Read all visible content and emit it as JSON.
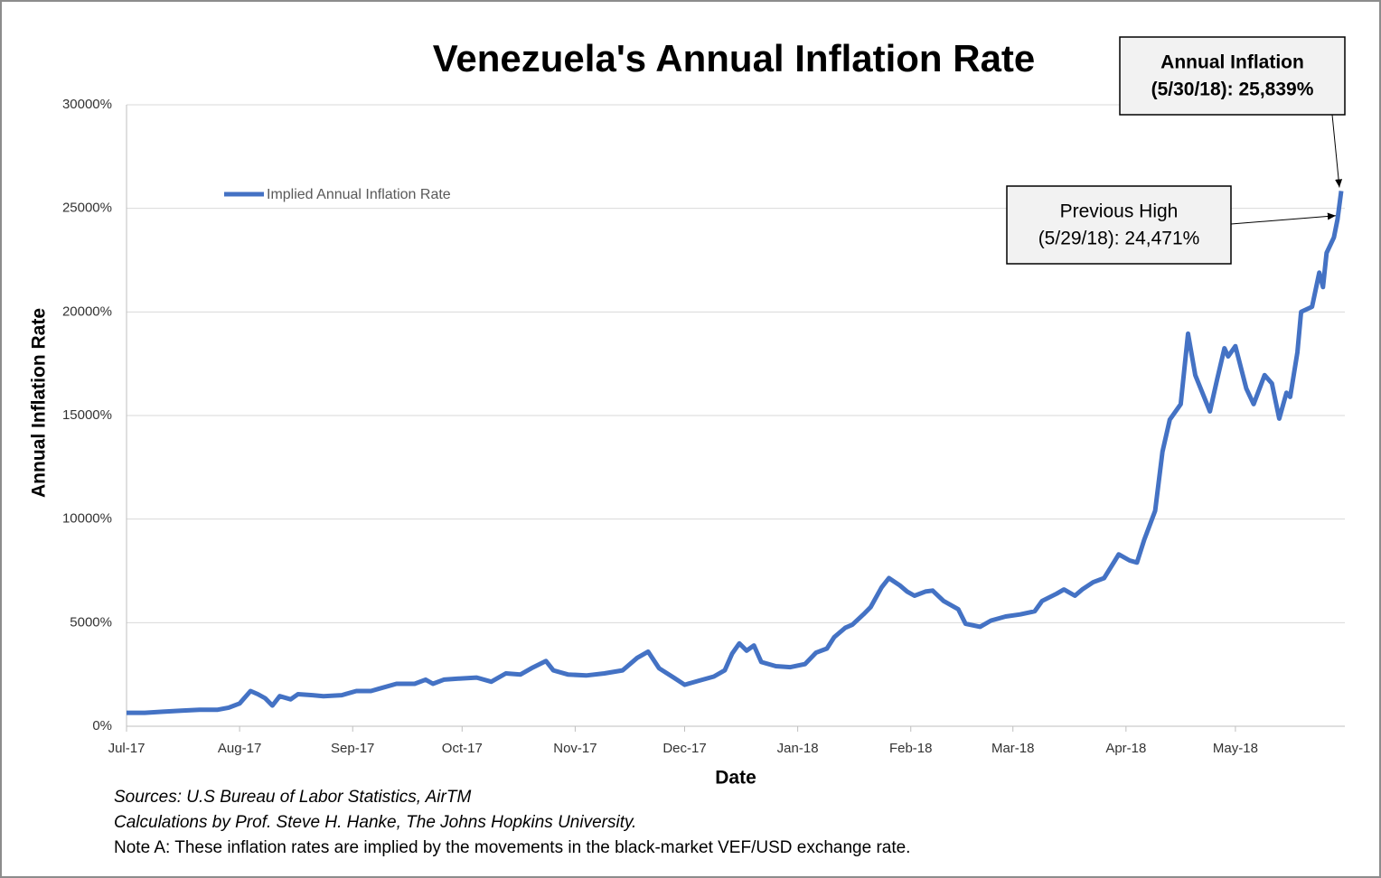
{
  "chart_data": {
    "type": "line",
    "title": "Venezuela's Annual Inflation Rate",
    "xlabel": "Date",
    "ylabel": "Annual Inflation Rate",
    "x": [
      0,
      5,
      10,
      15,
      20,
      25,
      28,
      31,
      34,
      36,
      38,
      40,
      42,
      45,
      47,
      51,
      54,
      59,
      63,
      67,
      69,
      74,
      79,
      82,
      84,
      87,
      91,
      96,
      100,
      104,
      108,
      111,
      115,
      117,
      121,
      126,
      131,
      136,
      140,
      143,
      146,
      150,
      153,
      157,
      161,
      164,
      166,
      168,
      170,
      172,
      174,
      178,
      182,
      186,
      189,
      192,
      194,
      197,
      199,
      202,
      204,
      207,
      209,
      212,
      214,
      216,
      219,
      221,
      224,
      228,
      230,
      234,
      237,
      241,
      245,
      249,
      251,
      255,
      257,
      260,
      262,
      265,
      268,
      271,
      272,
      275,
      277,
      279,
      282,
      284,
      286,
      289,
      291,
      293,
      297,
      299,
      301,
      302,
      304,
      307,
      309,
      312,
      314,
      316,
      318,
      319,
      321,
      322,
      325,
      327,
      328,
      329,
      331,
      332,
      333
    ],
    "series": [
      {
        "name": "Implied Annual Inflation Rate",
        "color": "#4472c4",
        "values": [
          650,
          650,
          700,
          750,
          800,
          800,
          900,
          1100,
          1700,
          1550,
          1350,
          1000,
          1450,
          1300,
          1550,
          1500,
          1450,
          1500,
          1700,
          1700,
          1800,
          2050,
          2050,
          2250,
          2050,
          2250,
          2300,
          2350,
          2150,
          2550,
          2500,
          2800,
          3150,
          2700,
          2500,
          2450,
          2550,
          2700,
          3300,
          3600,
          2800,
          2350,
          2000,
          2200,
          2400,
          2700,
          3500,
          4000,
          3650,
          3900,
          3100,
          2900,
          2850,
          3000,
          3550,
          3750,
          4300,
          4750,
          4900,
          5400,
          5750,
          6700,
          7150,
          6800,
          6500,
          6300,
          6500,
          6550,
          6050,
          5650,
          4950,
          4800,
          5100,
          5300,
          5400,
          5550,
          6050,
          6400,
          6600,
          6300,
          6600,
          6950,
          7150,
          8000,
          8300,
          8000,
          7900,
          9000,
          10400,
          13250,
          14800,
          15550,
          18950,
          16950,
          15200,
          16750,
          18250,
          17850,
          18350,
          16300,
          15550,
          16950,
          16550,
          14850,
          16100,
          15900,
          18050,
          20000,
          20250,
          21900,
          21200,
          22850,
          23600,
          24471,
          25839
        ]
      }
    ],
    "xlim": [
      0,
      334
    ],
    "xticks": [
      {
        "value": 0,
        "label": "Jul-17"
      },
      {
        "value": 31,
        "label": "Aug-17"
      },
      {
        "value": 62,
        "label": "Sep-17"
      },
      {
        "value": 92,
        "label": "Oct-17"
      },
      {
        "value": 123,
        "label": "Nov-17"
      },
      {
        "value": 153,
        "label": "Dec-17"
      },
      {
        "value": 184,
        "label": "Jan-18"
      },
      {
        "value": 215,
        "label": "Feb-18"
      },
      {
        "value": 243,
        "label": "Mar-18"
      },
      {
        "value": 274,
        "label": "Apr-18"
      },
      {
        "value": 304,
        "label": "May-18"
      }
    ],
    "ylim": [
      0,
      30000
    ],
    "yticks": [
      {
        "value": 0,
        "label": "0%"
      },
      {
        "value": 5000,
        "label": "5000%"
      },
      {
        "value": 10000,
        "label": "10000%"
      },
      {
        "value": 15000,
        "label": "15000%"
      },
      {
        "value": 20000,
        "label": "20000%"
      },
      {
        "value": 25000,
        "label": "25000%"
      },
      {
        "value": 30000,
        "label": "30000%"
      }
    ],
    "grid": true,
    "legend": "upper-left",
    "annotations": [
      {
        "lines": [
          "Annual Inflation",
          "(5/30/18): 25,839%"
        ]
      },
      {
        "lines": [
          "Previous High",
          "(5/29/18): 24,471%"
        ]
      }
    ],
    "notes": [
      "Sources: U.S Bureau of Labor Statistics, AirTM",
      "Calculations by Prof. Steve H. Hanke, The Johns Hopkins University.",
      "Note A: These inflation rates are implied by the movements in the black-market VEF/USD exchange rate."
    ]
  }
}
